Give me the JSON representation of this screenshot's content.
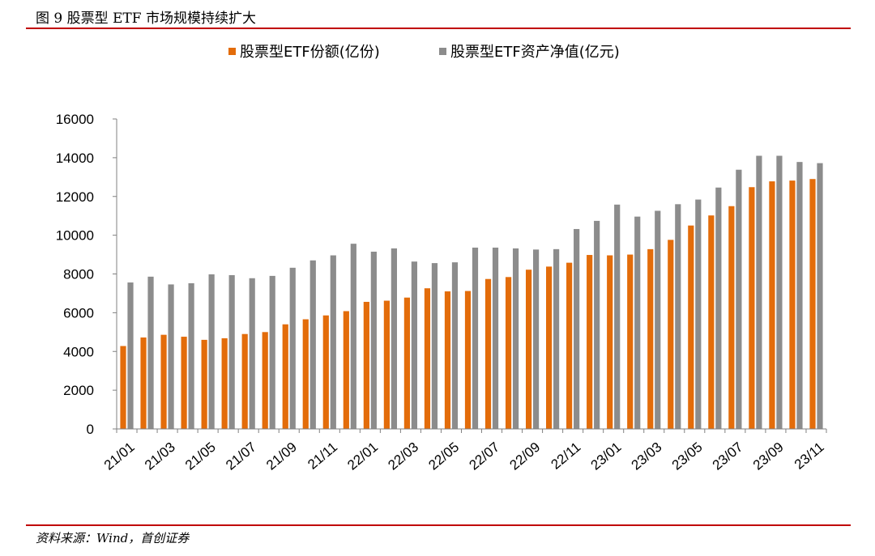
{
  "figure_title": "图 9 股票型 ETF 市场规模持续扩大",
  "source": "资料来源：Wind，首创证券",
  "colors": {
    "shares": "#E36C0A",
    "nav": "#8C8C8C",
    "rule": "#C00000"
  },
  "chart_data": {
    "type": "bar",
    "title": "",
    "xlabel": "",
    "ylabel": "",
    "ylim": [
      0,
      16000
    ],
    "yticks": [
      0,
      2000,
      4000,
      6000,
      8000,
      10000,
      12000,
      14000,
      16000
    ],
    "legend_position": "top",
    "categories": [
      "21/01",
      "21/02",
      "21/03",
      "21/04",
      "21/05",
      "21/06",
      "21/07",
      "21/08",
      "21/09",
      "21/10",
      "21/11",
      "21/12",
      "22/01",
      "22/02",
      "22/03",
      "22/04",
      "22/05",
      "22/06",
      "22/07",
      "22/08",
      "22/09",
      "22/10",
      "22/11",
      "22/12",
      "23/01",
      "23/02",
      "23/03",
      "23/04",
      "23/05",
      "23/06",
      "23/07",
      "23/08",
      "23/09",
      "23/10",
      "23/11"
    ],
    "xtick_labels": [
      "21/01",
      "21/03",
      "21/05",
      "21/07",
      "21/09",
      "21/11",
      "22/01",
      "22/03",
      "22/05",
      "22/07",
      "22/09",
      "22/11",
      "23/01",
      "23/03",
      "23/05",
      "23/07",
      "23/09",
      "23/11"
    ],
    "series": [
      {
        "name": "股票型ETF份额(亿份)",
        "values": [
          4280,
          4720,
          4860,
          4760,
          4600,
          4680,
          4900,
          5000,
          5400,
          5660,
          5860,
          6080,
          6560,
          6620,
          6780,
          7260,
          7100,
          7120,
          7740,
          7840,
          8220,
          8380,
          8580,
          8980,
          8960,
          9000,
          9280,
          9760,
          10500,
          11020,
          11500,
          12480,
          12780,
          12820,
          12900
        ]
      },
      {
        "name": "股票型ETF资产净值(亿元)",
        "values": [
          7560,
          7860,
          7460,
          7520,
          7980,
          7940,
          7780,
          7900,
          8320,
          8700,
          8960,
          9560,
          9150,
          9320,
          8640,
          8560,
          8600,
          9360,
          9360,
          9320,
          9260,
          9280,
          10320,
          10740,
          11580,
          10960,
          11260,
          11600,
          11840,
          12460,
          13380,
          14100,
          14100,
          13780,
          13720
        ]
      }
    ]
  }
}
